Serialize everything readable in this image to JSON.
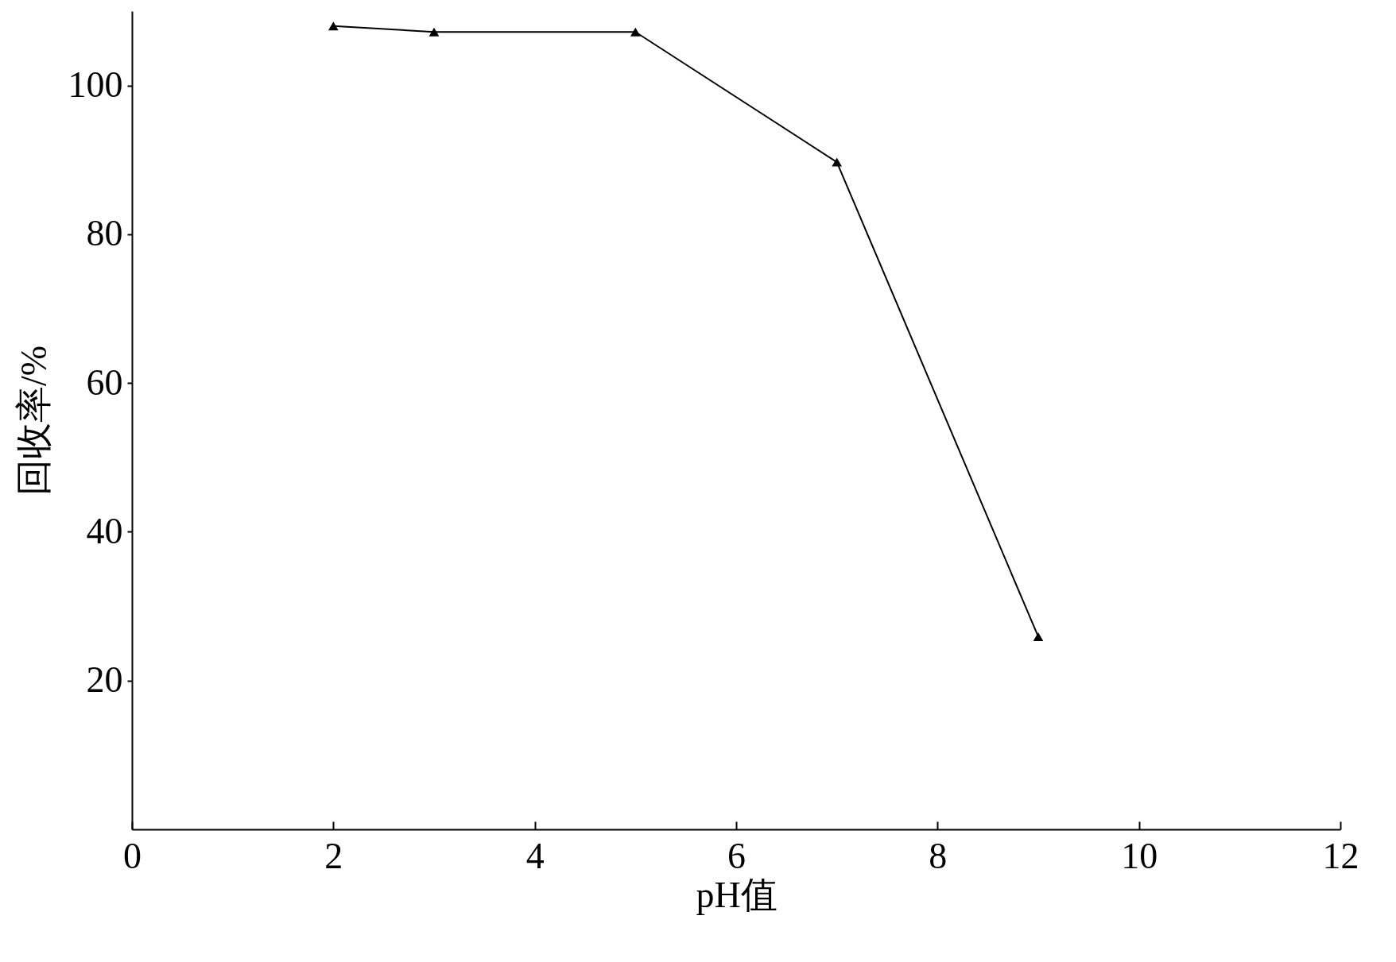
{
  "chart_data": {
    "type": "line",
    "xlabel": "pH值",
    "ylabel": "回收率/%",
    "x": [
      2,
      3,
      5,
      7,
      9
    ],
    "series": [
      {
        "color": "#000000",
        "values": [
          108.0,
          107.2,
          107.2,
          89.7,
          25.9
        ]
      }
    ],
    "xlim": [
      0,
      12
    ],
    "xticks": [
      0,
      2,
      4,
      6,
      8,
      10,
      12
    ],
    "ylim": [
      0,
      110
    ],
    "yticks": [
      20,
      40,
      60,
      80,
      100
    ],
    "marker": "triangle",
    "line_style": "solid",
    "grid": false,
    "legend": false
  }
}
